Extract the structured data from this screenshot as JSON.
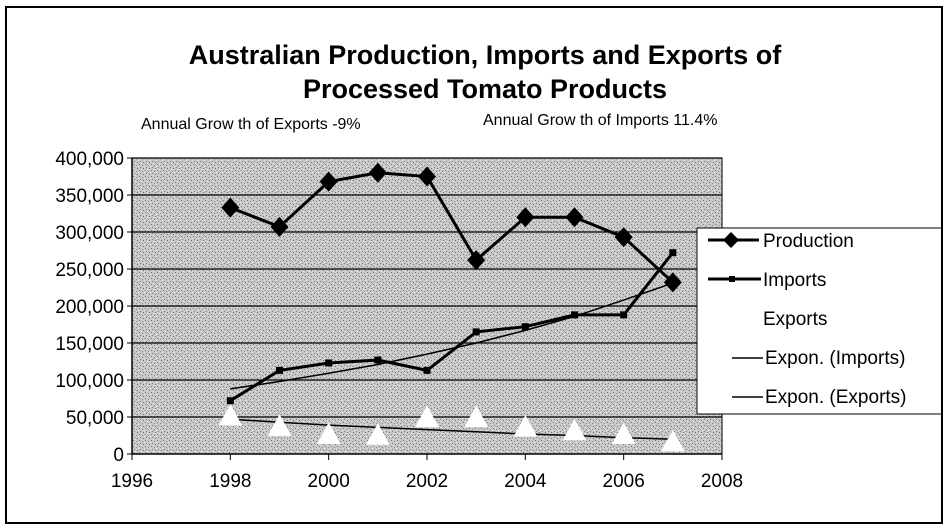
{
  "chart_data": {
    "type": "line",
    "title_line1": "Australian Production, Imports and Exports of",
    "title_line2": "Processed Tomato Products",
    "annotations": [
      {
        "text": "Annual Grow th of Exports -9%"
      },
      {
        "text": "Annual Grow th of Imports 11.4%"
      }
    ],
    "xlim": [
      1996,
      2008
    ],
    "ylim": [
      0,
      400000
    ],
    "x_ticks": [
      1996,
      1998,
      2000,
      2002,
      2004,
      2006,
      2008
    ],
    "x_tick_labels": [
      "1996",
      "1998",
      "2000",
      "2002",
      "2004",
      "2006",
      "2008"
    ],
    "y_ticks": [
      0,
      50000,
      100000,
      150000,
      200000,
      250000,
      300000,
      350000,
      400000
    ],
    "y_tick_labels": [
      "0",
      "50,000",
      "100,000",
      "150,000",
      "200,000",
      "250,000",
      "300,000",
      "350,000",
      "400,000"
    ],
    "grid": "horizontal",
    "legend_position": "right",
    "legend": [
      "Production",
      "Imports",
      "Exports",
      "Expon. (Imports)",
      "Expon. (Exports)"
    ],
    "series": [
      {
        "name": "Production",
        "marker": "diamond",
        "color": "#000000",
        "x": [
          1998,
          1999,
          2000,
          2001,
          2002,
          2003,
          2004,
          2005,
          2006,
          2007
        ],
        "values": [
          333000,
          307000,
          368000,
          380000,
          375000,
          262000,
          320000,
          320000,
          293000,
          232000
        ]
      },
      {
        "name": "Imports",
        "marker": "square",
        "color": "#000000",
        "x": [
          1998,
          1999,
          2000,
          2001,
          2002,
          2003,
          2004,
          2005,
          2006,
          2007
        ],
        "values": [
          72000,
          113000,
          123000,
          127000,
          113000,
          165000,
          172000,
          188000,
          188000,
          272000
        ]
      },
      {
        "name": "Exports",
        "marker": "triangle",
        "color": "#ffffff",
        "x": [
          1998,
          1999,
          2000,
          2001,
          2002,
          2003,
          2004,
          2005,
          2006,
          2007
        ],
        "values": [
          50000,
          36000,
          25000,
          24000,
          48000,
          48000,
          35000,
          30000,
          25000,
          15000
        ]
      },
      {
        "name": "Expon. (Imports)",
        "color": "#000000",
        "x": [
          1998,
          1999,
          2000,
          2001,
          2002,
          2003,
          2004,
          2005,
          2006,
          2007
        ],
        "values": [
          88000,
          98000,
          109000,
          121000,
          135000,
          150000,
          167000,
          186000,
          208000,
          231000
        ]
      },
      {
        "name": "Expon. (Exports)",
        "color": "#000000",
        "x": [
          1998,
          1999,
          2000,
          2001,
          2002,
          2003,
          2004,
          2005,
          2006,
          2007
        ],
        "values": [
          47000,
          43000,
          39000,
          36000,
          33000,
          30000,
          27000,
          25000,
          22000,
          20000
        ]
      }
    ]
  }
}
